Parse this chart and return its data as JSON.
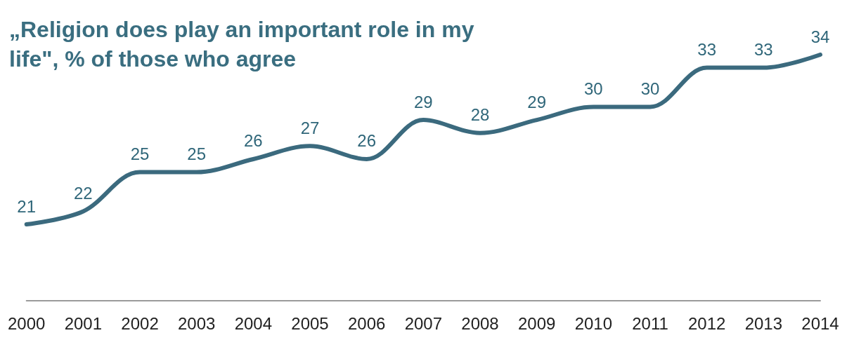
{
  "chart_data": {
    "type": "line",
    "title": "„Religion does play an important role in my life\", % of those who agree",
    "categories": [
      "2000",
      "2001",
      "2002",
      "2003",
      "2004",
      "2005",
      "2006",
      "2007",
      "2008",
      "2009",
      "2010",
      "2011",
      "2012",
      "2013",
      "2014"
    ],
    "series": [
      {
        "color": "#3b6a7e",
        "values": [
          21,
          22,
          25,
          25,
          26,
          27,
          26,
          29,
          28,
          29,
          30,
          30,
          33,
          33,
          34
        ]
      }
    ],
    "data_labels": true,
    "grid": false,
    "marker": "none",
    "line_style": "solid"
  }
}
